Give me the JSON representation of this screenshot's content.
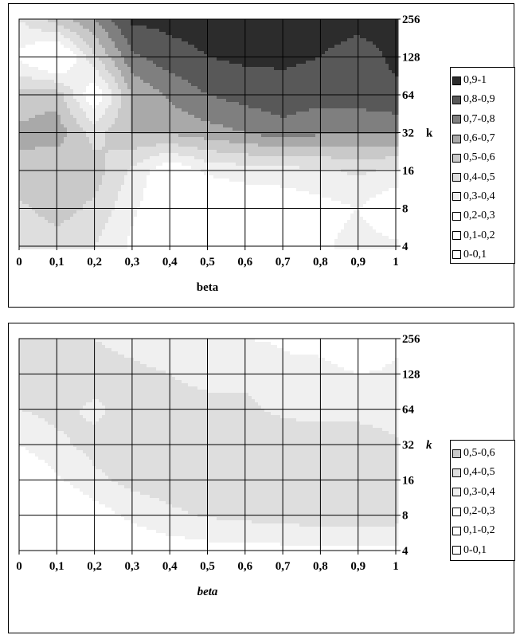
{
  "colors": {
    "0-0,1": "#ffffff",
    "0,1-0,2": "#ffffff",
    "0,2-0,3": "#ffffff",
    "0,3-0,4": "#f0f0f0",
    "0,4-0,5": "#dedede",
    "0,5-0,6": "#c9c9c9",
    "0,6-0,7": "#a9a9a9",
    "0,7-0,8": "#7f7f7f",
    "0,8-0,9": "#585858",
    "0,9-1": "#2c2c2c"
  },
  "chart_data": [
    {
      "type": "contour",
      "x_tick_labels": [
        "0",
        "0,1",
        "0,2",
        "0,3",
        "0,4",
        "0,5",
        "0,6",
        "0,7",
        "0,8",
        "0,9",
        "1"
      ],
      "y_tick_labels": [
        "4",
        "8",
        "16",
        "32",
        "64",
        "128",
        "256"
      ],
      "x_values": [
        0,
        0.1,
        0.2,
        0.3,
        0.4,
        0.5,
        0.6,
        0.7,
        0.8,
        0.9,
        1
      ],
      "y_values": [
        4,
        8,
        16,
        32,
        64,
        128,
        256
      ],
      "y_scale": "log2",
      "xlabel": "beta",
      "ylabel": "k",
      "legend_position": "right",
      "legend": [
        "0,9-1",
        "0,8-0,9",
        "0,7-0,8",
        "0,6-0,7",
        "0,5-0,6",
        "0,4-0,5",
        "0,3-0,4",
        "0,2-0,3",
        "0,1-0,2",
        "0-0,1"
      ],
      "z": [
        [
          0.42,
          0.46,
          0.4,
          0.28,
          0.18,
          0.1,
          0.12,
          0.14,
          0.28,
          0.34,
          0.32
        ],
        [
          0.48,
          0.54,
          0.48,
          0.32,
          0.2,
          0.18,
          0.2,
          0.22,
          0.26,
          0.3,
          0.2
        ],
        [
          0.58,
          0.5,
          0.55,
          0.38,
          0.2,
          0.32,
          0.35,
          0.36,
          0.38,
          0.42,
          0.38
        ],
        [
          0.62,
          0.66,
          0.46,
          0.6,
          0.62,
          0.66,
          0.7,
          0.76,
          0.72,
          0.7,
          0.72
        ],
        [
          0.54,
          0.56,
          0.2,
          0.6,
          0.72,
          0.8,
          0.84,
          0.86,
          0.84,
          0.86,
          0.88
        ],
        [
          0.28,
          0.1,
          0.48,
          0.78,
          0.86,
          0.9,
          0.92,
          0.92,
          0.9,
          0.86,
          0.92
        ],
        [
          0.4,
          0.56,
          0.7,
          0.92,
          0.93,
          0.94,
          0.95,
          0.95,
          0.94,
          0.93,
          0.93
        ]
      ]
    },
    {
      "type": "contour",
      "x_tick_labels": [
        "0",
        "0,1",
        "0,2",
        "0,3",
        "0,4",
        "0,5",
        "0,6",
        "0,7",
        "0,8",
        "0,9",
        "1"
      ],
      "y_tick_labels": [
        "4",
        "8",
        "16",
        "32",
        "64",
        "128",
        "256"
      ],
      "x_values": [
        0,
        0.1,
        0.2,
        0.3,
        0.4,
        0.5,
        0.6,
        0.7,
        0.8,
        0.9,
        1
      ],
      "y_values": [
        4,
        8,
        16,
        32,
        64,
        128,
        256
      ],
      "y_scale": "log2",
      "xlabel": "beta",
      "ylabel": "k",
      "legend_position": "right",
      "legend": [
        "0,5-0,6",
        "0,4-0,5",
        "0,3-0,4",
        "0,2-0,3",
        "0,1-0,2",
        "0-0,1"
      ],
      "z": [
        [
          0.04,
          0.06,
          0.12,
          0.2,
          0.24,
          0.26,
          0.26,
          0.27,
          0.28,
          0.28,
          0.27
        ],
        [
          0.08,
          0.14,
          0.24,
          0.33,
          0.38,
          0.41,
          0.43,
          0.44,
          0.46,
          0.46,
          0.45
        ],
        [
          0.18,
          0.28,
          0.38,
          0.43,
          0.45,
          0.46,
          0.47,
          0.47,
          0.47,
          0.46,
          0.44
        ],
        [
          0.3,
          0.38,
          0.43,
          0.46,
          0.47,
          0.48,
          0.47,
          0.46,
          0.47,
          0.5,
          0.42
        ],
        [
          0.4,
          0.43,
          0.38,
          0.44,
          0.45,
          0.44,
          0.42,
          0.38,
          0.36,
          0.34,
          0.33
        ],
        [
          0.42,
          0.44,
          0.45,
          0.43,
          0.4,
          0.36,
          0.38,
          0.32,
          0.35,
          0.3,
          0.32
        ],
        [
          0.44,
          0.42,
          0.4,
          0.36,
          0.32,
          0.3,
          0.3,
          0.29,
          0.25,
          0.15,
          0.28
        ]
      ]
    }
  ]
}
